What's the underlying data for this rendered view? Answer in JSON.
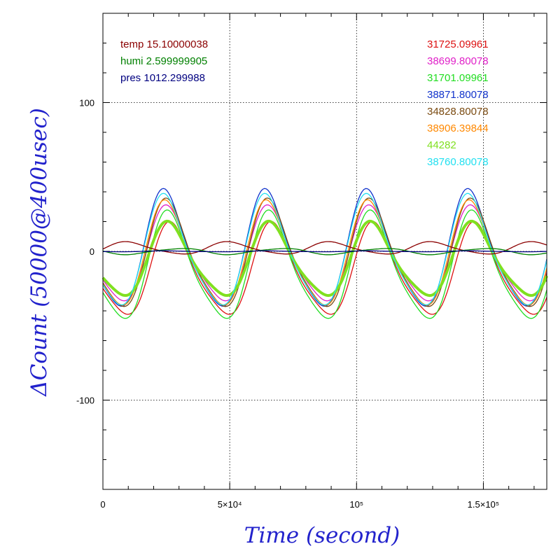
{
  "chart_data": {
    "type": "line",
    "xlabel": "Time (second)",
    "ylabel": "ΔCount (50000@400usec)",
    "xlim": [
      0,
      175000
    ],
    "ylim": [
      -160,
      160
    ],
    "x_ticks": [
      {
        "value": 0,
        "label": "0"
      },
      {
        "value": 50000,
        "label": "5×10⁴"
      },
      {
        "value": 100000,
        "label": "10⁵"
      },
      {
        "value": 150000,
        "label": "1.5×10⁵"
      }
    ],
    "y_ticks": [
      {
        "value": 100,
        "label": "100"
      },
      {
        "value": 0,
        "label": "0"
      },
      {
        "value": -100,
        "label": "-100"
      }
    ],
    "grid": true,
    "legend_left": [
      {
        "name": "temp 15.10000038",
        "color": "#8b0000"
      },
      {
        "name": "humi 2.599999905",
        "color": "#008000"
      },
      {
        "name": "pres 1012.299988",
        "color": "#000080"
      }
    ],
    "legend_right": [
      {
        "name": "31725.09961",
        "color": "#dd1111"
      },
      {
        "name": "38699.80078",
        "color": "#e020c8"
      },
      {
        "name": "31701.09961",
        "color": "#22dd22"
      },
      {
        "name": "38871.80078",
        "color": "#1133cc"
      },
      {
        "name": "34828.80078",
        "color": "#7a4a10"
      },
      {
        "name": "38906.39844",
        "color": "#ff8800"
      },
      {
        "name": "44282",
        "color": "#80e020"
      },
      {
        "name": "38760.80078",
        "color": "#22e0f0"
      }
    ],
    "series_model": {
      "period": 40000,
      "phase_peak_x": 25000,
      "x_start": 0,
      "x_end": 175000
    },
    "series": [
      {
        "legend": "31725.09961",
        "color": "#dd1111",
        "offset": -14,
        "amp": 30,
        "peak_shift": 2500
      },
      {
        "legend": "38699.80078",
        "color": "#e020c8",
        "offset": -4,
        "amp": 31,
        "peak_shift": 1000
      },
      {
        "legend": "31701.09961",
        "color": "#22dd22",
        "offset": -12,
        "amp": 35,
        "peak_shift": 1500
      },
      {
        "legend": "38871.80078",
        "color": "#1133cc",
        "offset": -1,
        "amp": 38,
        "peak_shift": 0
      },
      {
        "legend": "34828.80078",
        "color": "#7a4a10",
        "offset": -4,
        "amp": 35,
        "peak_shift": 1000
      },
      {
        "legend": "38906.39844",
        "color": "#ff8800",
        "offset": -4,
        "amp": 34,
        "peak_shift": 500
      },
      {
        "legend": "44282",
        "color": "#80e020",
        "offset": -7,
        "amp": 24,
        "peak_shift": 1500
      },
      {
        "legend": "38760.80078",
        "color": "#22e0f0",
        "offset": -2,
        "amp": 36,
        "peak_shift": 0
      },
      {
        "legend": "temp 15.10000038",
        "color": "#8b0000",
        "offset": 2,
        "amp": 4,
        "peak_shift": 25000
      },
      {
        "legend": "humi 2.599999905",
        "color": "#008000",
        "offset": 0,
        "amp": -2,
        "peak_shift": 25000
      },
      {
        "legend": "pres 1012.299988",
        "color": "#000080",
        "offset": 0,
        "amp": 0.3,
        "peak_shift": 0
      }
    ]
  }
}
